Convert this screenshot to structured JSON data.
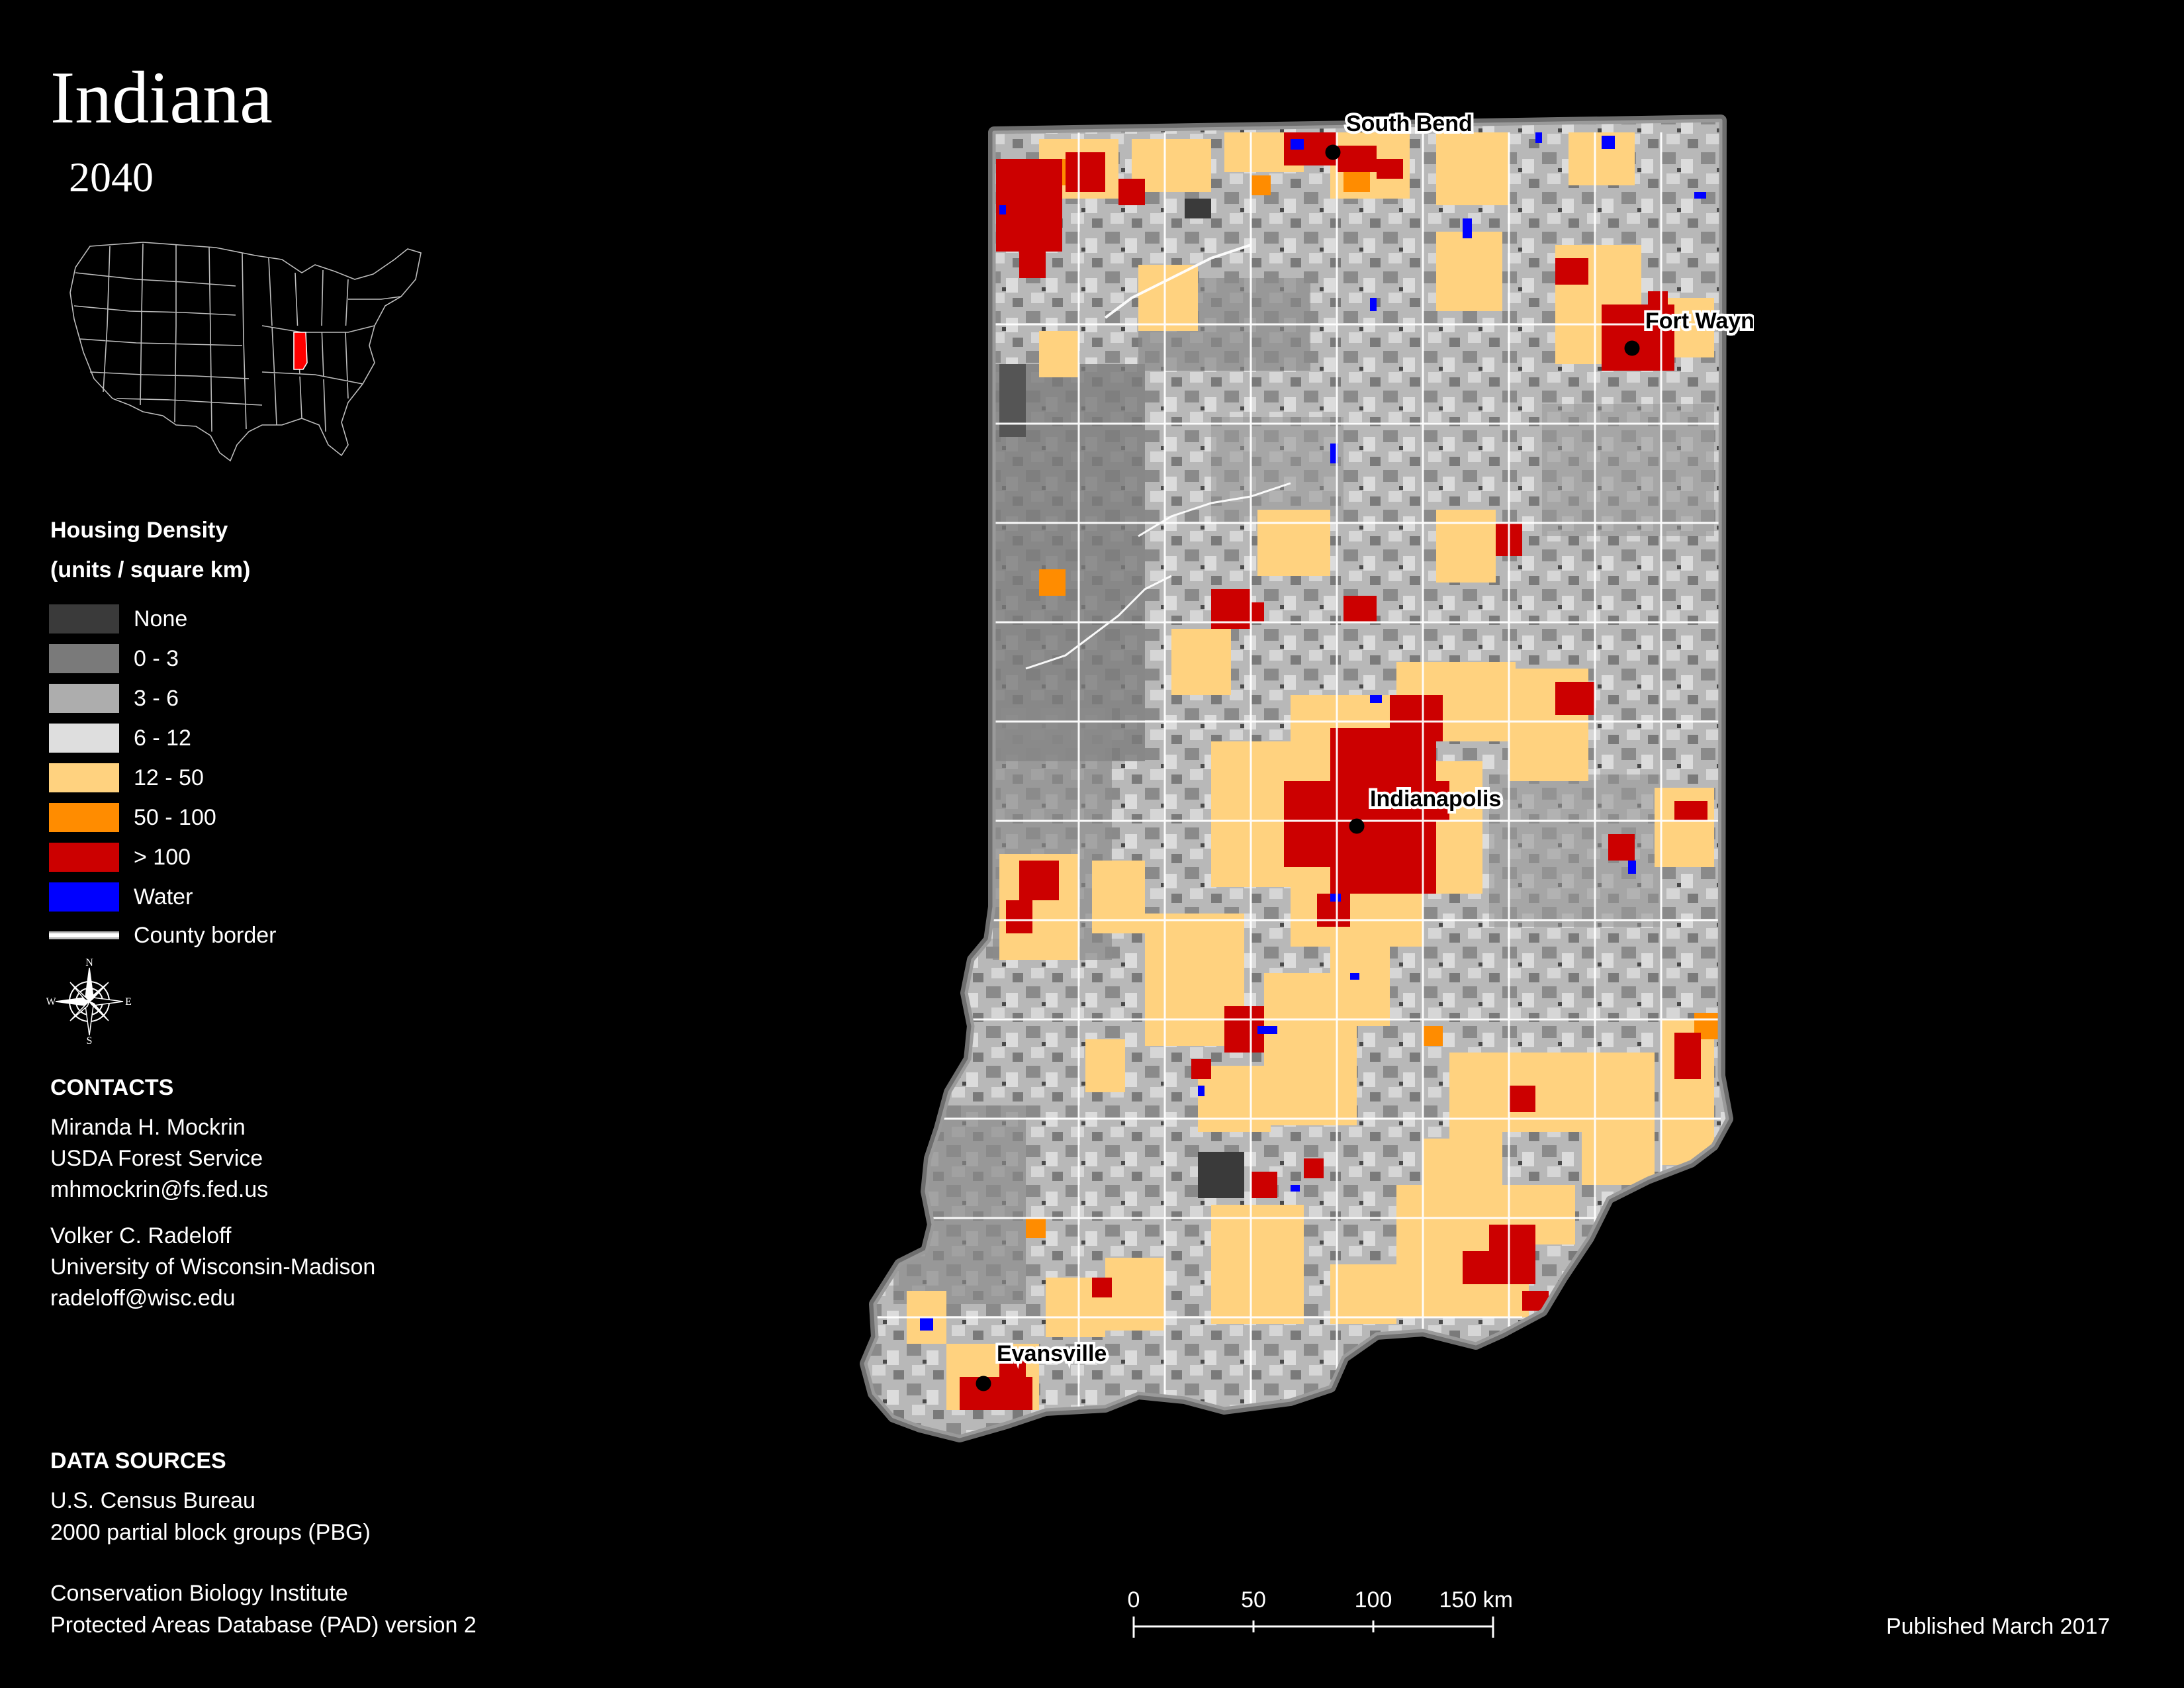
{
  "header": {
    "title": "Indiana",
    "year": "2040"
  },
  "inset_map": {
    "highlight_state": "Indiana",
    "highlight_color": "#ff0000"
  },
  "legend": {
    "title_line1": "Housing Density",
    "title_line2": "(units / square km)",
    "items": [
      {
        "label": "None",
        "color": "#3a3a3a"
      },
      {
        "label": "0 - 3",
        "color": "#7a7a7a"
      },
      {
        "label": "3 - 6",
        "color": "#adadad"
      },
      {
        "label": "6 - 12",
        "color": "#dedede"
      },
      {
        "label": "12 - 50",
        "color": "#ffd27f"
      },
      {
        "label": "50 - 100",
        "color": "#ff8c00"
      },
      {
        "label": "> 100",
        "color": "#cc0000"
      },
      {
        "label": "Water",
        "color": "#0000ff"
      }
    ],
    "border_label": "County border"
  },
  "compass": {
    "n": "N",
    "s": "S",
    "e": "E",
    "w": "W"
  },
  "contacts": {
    "heading": "CONTACTS",
    "people": [
      {
        "name": "Miranda H. Mockrin",
        "org": "USDA Forest Service",
        "email": "mhmockrin@fs.fed.us"
      },
      {
        "name": "Volker C. Radeloff",
        "org": "University of Wisconsin-Madison",
        "email": "radeloff@wisc.edu"
      }
    ]
  },
  "data_sources": {
    "heading": "DATA SOURCES",
    "lines": [
      "U.S. Census Bureau",
      "2000 partial block groups (PBG)",
      "Conservation Biology Institute",
      "Protected Areas Database (PAD) version 2"
    ]
  },
  "scale": {
    "ticks": [
      "0",
      "50",
      "100",
      "150 km"
    ]
  },
  "published": "Published March 2017",
  "cities": [
    {
      "name": "South Bend"
    },
    {
      "name": "Fort Wayne"
    },
    {
      "name": "Indianapolis"
    },
    {
      "name": "Evansville"
    }
  ]
}
